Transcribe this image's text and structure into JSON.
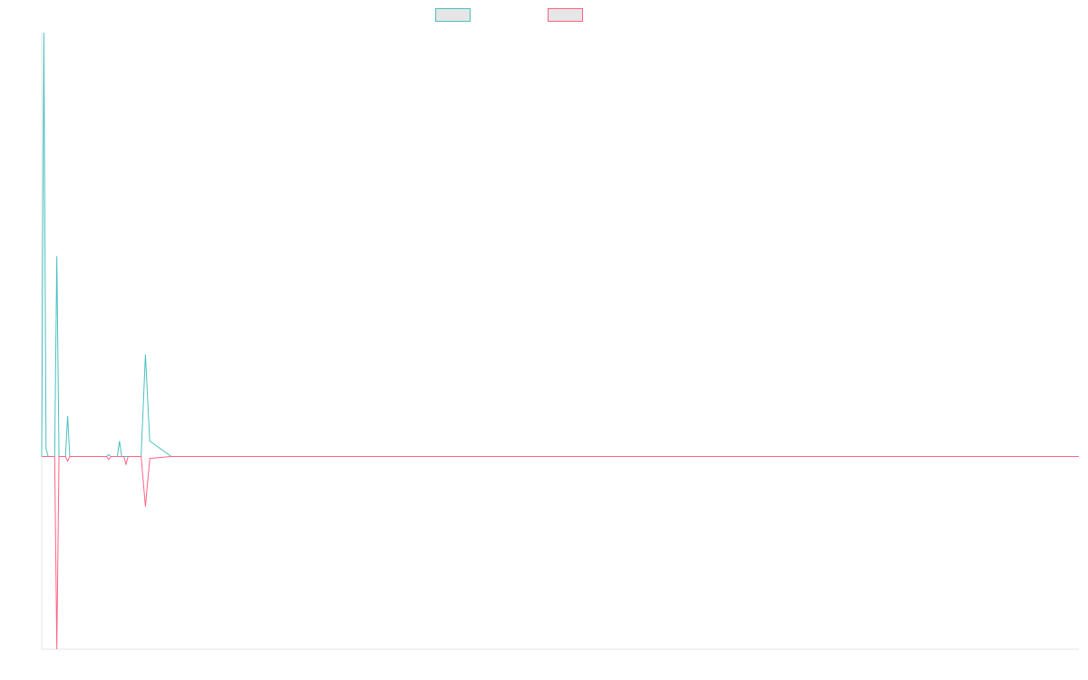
{
  "chart_data": {
    "type": "line",
    "title": "",
    "xlabel": "",
    "ylabel": "",
    "x": [
      0,
      0.5,
      1,
      1.5,
      2,
      2.5,
      3,
      3.5,
      4,
      4.5,
      5,
      5.5,
      6,
      6.5,
      7,
      7.5,
      8,
      8.5,
      9,
      9.5,
      10,
      10.5,
      11,
      11.5,
      12,
      12.5,
      13,
      13.5,
      14,
      14.5,
      15,
      15.5,
      16,
      16.5,
      17,
      17.5,
      18,
      18.5,
      19,
      19.5,
      20,
      21,
      22,
      23,
      24,
      25,
      30,
      40,
      60,
      80,
      100,
      120,
      140,
      160,
      180,
      200,
      220,
      230,
      240
    ],
    "xlim": [
      0,
      240
    ],
    "ylim": [
      -50,
      110
    ],
    "grid": false,
    "legend_position": "top",
    "series": [
      {
        "color": "#4bc0c0",
        "values": [
          0,
          110,
          2,
          0,
          0,
          0,
          0,
          52,
          0,
          0,
          0,
          0,
          10.5,
          0,
          0,
          0,
          0,
          0,
          0,
          0,
          0,
          0,
          0,
          0,
          0,
          0,
          0,
          0,
          0,
          0,
          0,
          0.5,
          0,
          0,
          0,
          0,
          4,
          0,
          0,
          0,
          0,
          0,
          0,
          0,
          26.5,
          4,
          0,
          0,
          0,
          0,
          0,
          0,
          0,
          0,
          0,
          0,
          0,
          0,
          0
        ]
      },
      {
        "color": "#ff6384",
        "values": [
          0,
          0,
          0,
          0,
          0,
          0,
          0,
          -50,
          0,
          0,
          0,
          0,
          -1.2,
          0,
          0,
          0,
          0,
          0,
          0,
          0,
          0,
          0,
          0,
          0,
          0,
          0,
          0,
          0,
          0,
          0,
          0,
          -0.8,
          0,
          0,
          0,
          0,
          0,
          0,
          0,
          -2,
          0,
          0,
          0,
          0,
          -13,
          -0.5,
          0,
          0,
          0,
          0,
          0,
          0,
          0,
          0,
          0,
          0,
          0,
          0,
          0
        ]
      }
    ]
  }
}
